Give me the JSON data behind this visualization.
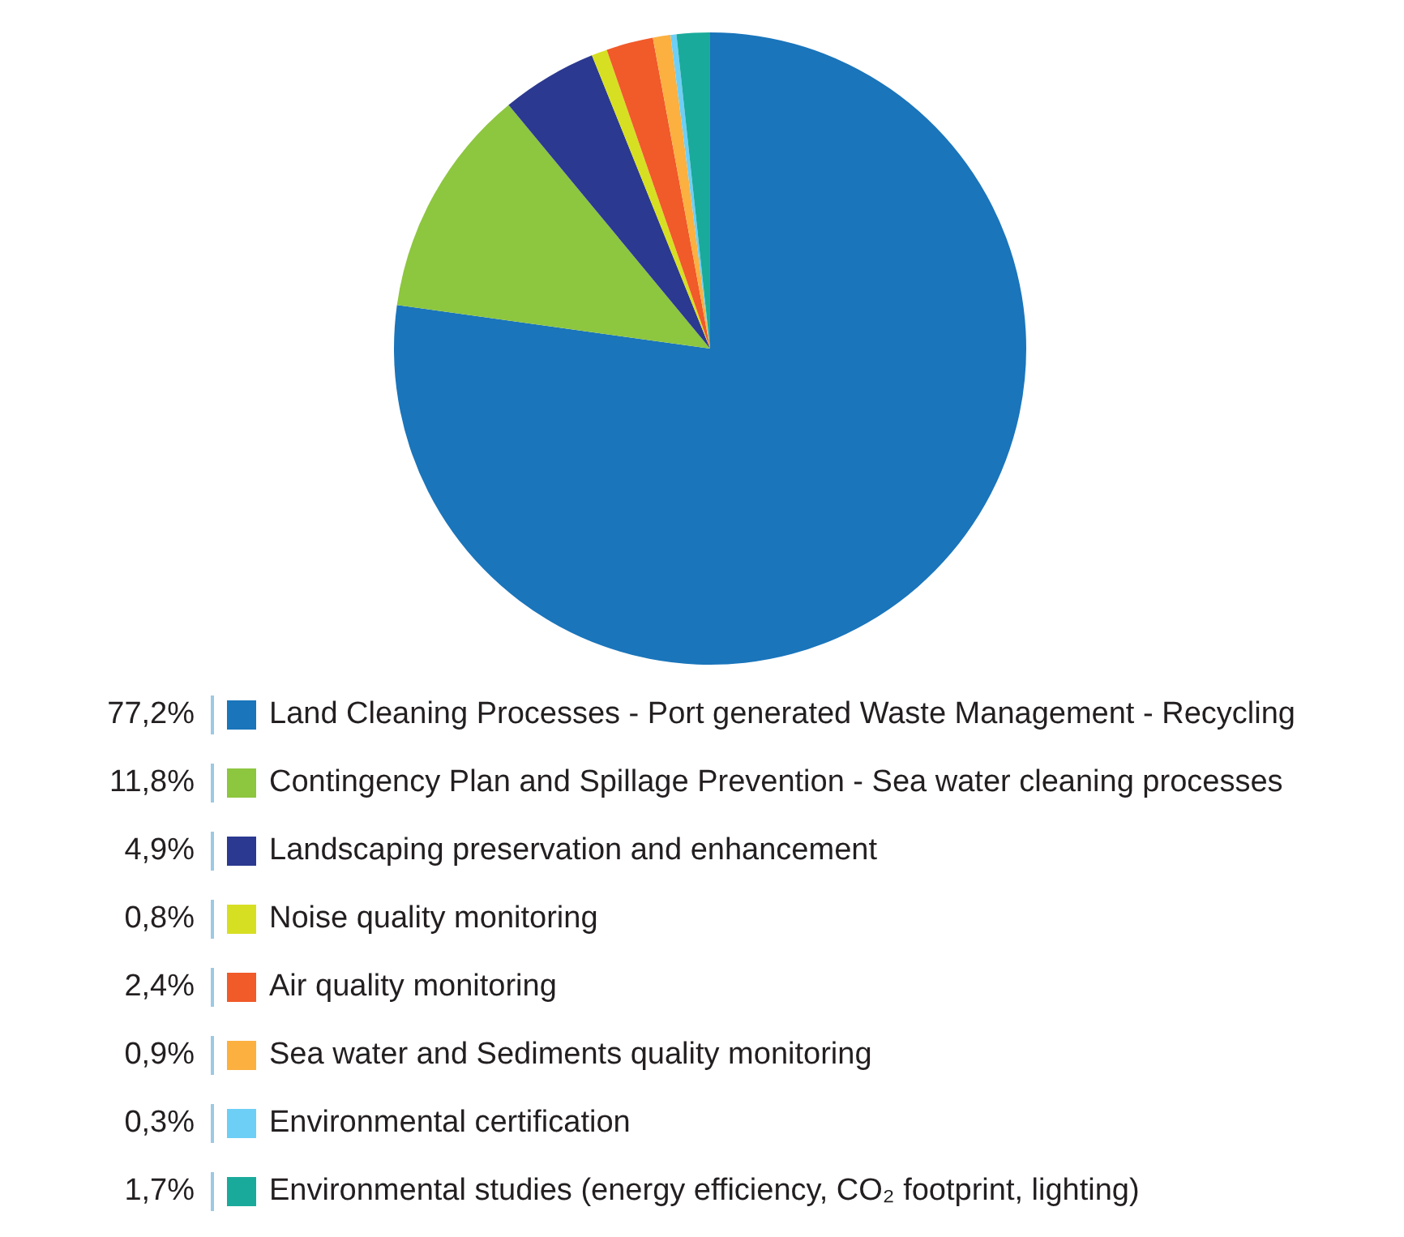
{
  "chart_data": {
    "type": "pie",
    "categories": [
      "Land Cleaning Processes - Port generated Waste Management - Recycling",
      "Contingency Plan and Spillage Prevention - Sea water cleaning processes",
      "Landscaping preservation and enhancement",
      "Noise quality monitoring",
      "Air quality monitoring",
      "Sea water and Sediments quality monitoring",
      "Environmental certification",
      "Environmental studies (energy efficiency, CO₂ footprint, lighting)"
    ],
    "values": [
      77.2,
      11.8,
      4.9,
      0.8,
      2.4,
      0.9,
      0.3,
      1.7
    ],
    "value_labels": [
      "77,2%",
      "11,8%",
      "4,9%",
      "0,8%",
      "2,4%",
      "0,9%",
      "0,3%",
      "1,7%"
    ],
    "colors": [
      "#1a75bb",
      "#8dc63f",
      "#2b3990",
      "#d7df23",
      "#f15a29",
      "#fbb040",
      "#6dcff6",
      "#1aaa9b"
    ],
    "legend": "bottom"
  }
}
